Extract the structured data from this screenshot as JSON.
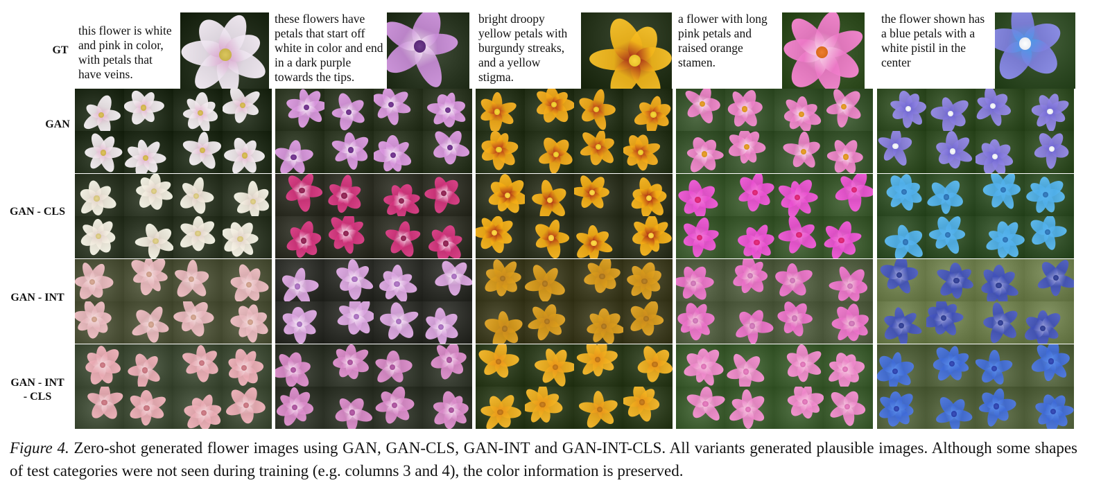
{
  "row_labels": [
    "GT",
    "GAN",
    "GAN - CLS",
    "GAN - INT",
    "GAN - INT\n- CLS"
  ],
  "columns": [
    {
      "caption": "this flower is white and pink in color, with petals that have veins.",
      "palette": {
        "bg": "#1f2a18",
        "petal": "#ece3ee",
        "accent": "#d8a4cc",
        "center": "#c7b24a"
      }
    },
    {
      "caption": "these flowers have petals that start off white in color and end in a dark purple towards the tips.",
      "palette": {
        "bg": "#27331f",
        "petal": "#c78ad6",
        "accent": "#f3e6f3",
        "center": "#5a2a78"
      }
    },
    {
      "caption": "bright droopy yellow petals with burgundy streaks, and a yellow stigma.",
      "palette": {
        "bg": "#233018",
        "petal": "#f2b51a",
        "accent": "#a3281a",
        "center": "#e7c22b"
      }
    },
    {
      "caption": "a flower with long pink petals and raised orange stamen.",
      "palette": {
        "bg": "#2e4a1e",
        "petal": "#ec78c6",
        "accent": "#f7d3e7",
        "center": "#d96a1c"
      }
    },
    {
      "caption": "the flower shown has a blue petals with a white pistil in the center",
      "palette": {
        "bg": "#2c4722",
        "petal": "#7f7fe0",
        "accent": "#4a9ae8",
        "center": "#e9ecf3"
      }
    }
  ],
  "row_palettes": [
    [
      [
        "#1f2a18",
        "#f0e8ec",
        "#e3b6cf",
        "#cbb04a"
      ],
      [
        "#29331f",
        "#d794dc",
        "#f4ecf4",
        "#6a2e86"
      ],
      [
        "#26321a",
        "#f0a716",
        "#b3361a",
        "#e6c52a"
      ],
      [
        "#35502a",
        "#ea7fc5",
        "#f7dcea",
        "#d8901d"
      ],
      [
        "#2f4a22",
        "#8b7fe0",
        "#6f66d0",
        "#e8eaf0"
      ]
    ],
    [
      [
        "#2a3322",
        "#f2ecdf",
        "#e0cfc7",
        "#d2c27c"
      ],
      [
        "#2c2d23",
        "#d3327c",
        "#f1dbe7",
        "#8a1f4e"
      ],
      [
        "#2d3220",
        "#f2ab13",
        "#a92a18",
        "#f2c83a"
      ],
      [
        "#38552b",
        "#e94ed0",
        "#f07ad7",
        "#d52070"
      ],
      [
        "#2f4c26",
        "#4faee8",
        "#59b5f0",
        "#2a6fb0"
      ]
    ],
    [
      [
        "#4a4f36",
        "#e6b5bb",
        "#f3dbdb",
        "#c79a86"
      ],
      [
        "#2a2b26",
        "#d9a3de",
        "#f5e8f5",
        "#a36bb8"
      ],
      [
        "#3b3a1f",
        "#d89a1a",
        "#c7881e",
        "#a5701a"
      ],
      [
        "#4e5a3e",
        "#e86fc6",
        "#f0c6d9",
        "#c770b0"
      ],
      [
        "#6a7a4a",
        "#3f4fb8",
        "#9aa0d8",
        "#2c3a8e"
      ]
    ],
    [
      [
        "#3e4a35",
        "#e8a9b2",
        "#f2d6da",
        "#c0707a"
      ],
      [
        "#2e3328",
        "#d888c7",
        "#f4dcee",
        "#a44e97"
      ],
      [
        "#2b3a1c",
        "#f0ae1e",
        "#e8921a",
        "#b86f12"
      ],
      [
        "#3b5a2e",
        "#ed86c9",
        "#f5c6df",
        "#d76fb1"
      ],
      [
        "#4f5e3a",
        "#3f6ad6",
        "#5b8ee8",
        "#2a3fa8"
      ]
    ]
  ],
  "figure_caption": {
    "label": "Figure 4.",
    "text": " Zero-shot generated flower images using GAN, GAN-CLS, GAN-INT and GAN-INT-CLS. All variants generated plausible images. Although some shapes of test categories were not seen during training (e.g. columns 3 and 4), the color information is preserved."
  }
}
